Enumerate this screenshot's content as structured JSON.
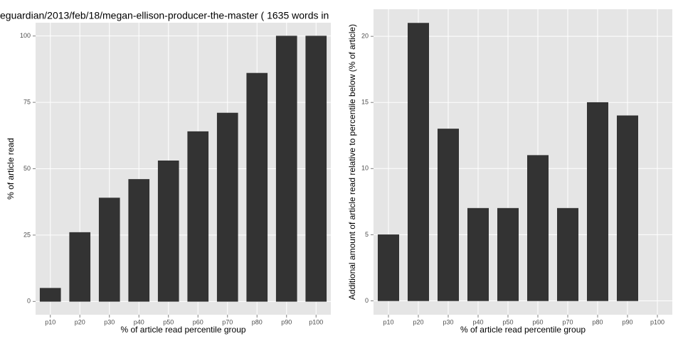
{
  "chart_data": [
    {
      "type": "bar",
      "title": "eguardian/2013/feb/18/megan-ellison-producer-the-master ( 1635 words in",
      "x_label": "% of article read percentile group",
      "y_label": "% of article read",
      "categories": [
        "p10",
        "p20",
        "p30",
        "p40",
        "p50",
        "p60",
        "p70",
        "p80",
        "p90",
        "p100"
      ],
      "values": [
        5,
        26,
        39,
        46,
        53,
        64,
        71,
        86,
        100,
        100
      ],
      "color": "#333333",
      "ylim": [
        -5,
        105
      ],
      "yticks": [
        0,
        25,
        50,
        75,
        100
      ],
      "grid": true
    },
    {
      "type": "bar",
      "x_label": "% of article read percentile group",
      "y_label": "Additional amount of article read relative to percentile below (% of article)",
      "categories": [
        "p10",
        "p20",
        "p30",
        "p40",
        "p50",
        "p60",
        "p70",
        "p80",
        "p90",
        "p100"
      ],
      "values": [
        5,
        21,
        13,
        7,
        7,
        11,
        7,
        15,
        14,
        0
      ],
      "color": "#333333",
      "ylim": [
        -1.05,
        22.05
      ],
      "yticks": [
        0,
        5,
        10,
        15,
        20
      ],
      "grid": true
    }
  ]
}
